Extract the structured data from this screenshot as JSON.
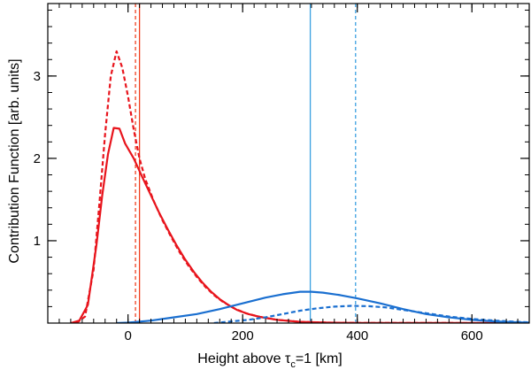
{
  "chart_data": {
    "type": "line",
    "xlabel": {
      "prefix": "Height above ",
      "tau": "τ",
      "sub": "c",
      "suffix": "=1 [km]"
    },
    "ylabel": "Contribution Function [arb. units]",
    "xlim": [
      -140,
      700
    ],
    "ylim": [
      0,
      3.88
    ],
    "xticks": [
      0,
      200,
      400,
      600
    ],
    "xtick_labels": [
      "0",
      "200",
      "400",
      "600"
    ],
    "yticks": [
      1,
      2,
      3
    ],
    "ytick_labels": [
      "1",
      "2",
      "3"
    ],
    "x_minor_step": 20,
    "y_minor_step": 0.2,
    "grid": false,
    "colors": {
      "red": "#e8141c",
      "blue": "#1a6fd0",
      "vline_red": "#f04020",
      "vline_blue": "#3aa0e0"
    },
    "series": [
      {
        "color": "red",
        "dash": false,
        "points": [
          [
            -100,
            0
          ],
          [
            -85,
            0.03
          ],
          [
            -70,
            0.22
          ],
          [
            -55,
            0.95
          ],
          [
            -45,
            1.55
          ],
          [
            -35,
            2.05
          ],
          [
            -25,
            2.37
          ],
          [
            -15,
            2.36
          ],
          [
            -5,
            2.18
          ],
          [
            10,
            2.0
          ],
          [
            25,
            1.77
          ],
          [
            40,
            1.55
          ],
          [
            55,
            1.33
          ],
          [
            70,
            1.13
          ],
          [
            85,
            0.94
          ],
          [
            100,
            0.77
          ],
          [
            115,
            0.62
          ],
          [
            130,
            0.49
          ],
          [
            145,
            0.38
          ],
          [
            160,
            0.29
          ],
          [
            175,
            0.22
          ],
          [
            190,
            0.16
          ],
          [
            210,
            0.11
          ],
          [
            230,
            0.075
          ],
          [
            260,
            0.04
          ],
          [
            300,
            0.015
          ],
          [
            350,
            0.005
          ],
          [
            400,
            0.002
          ],
          [
            700,
            0
          ]
        ]
      },
      {
        "color": "red",
        "dash": true,
        "points": [
          [
            -90,
            0
          ],
          [
            -75,
            0.08
          ],
          [
            -60,
            0.65
          ],
          [
            -50,
            1.45
          ],
          [
            -40,
            2.3
          ],
          [
            -30,
            3.0
          ],
          [
            -20,
            3.3
          ],
          [
            -10,
            3.1
          ],
          [
            0,
            2.75
          ],
          [
            10,
            2.35
          ],
          [
            20,
            2.0
          ],
          [
            30,
            1.75
          ],
          [
            45,
            1.48
          ],
          [
            60,
            1.25
          ],
          [
            75,
            1.05
          ],
          [
            90,
            0.86
          ],
          [
            105,
            0.7
          ],
          [
            120,
            0.56
          ],
          [
            135,
            0.44
          ],
          [
            150,
            0.34
          ],
          [
            165,
            0.26
          ],
          [
            185,
            0.18
          ],
          [
            205,
            0.12
          ],
          [
            230,
            0.075
          ],
          [
            260,
            0.04
          ],
          [
            300,
            0.015
          ],
          [
            350,
            0.005
          ],
          [
            400,
            0.002
          ],
          [
            700,
            0
          ]
        ]
      },
      {
        "color": "blue",
        "dash": false,
        "points": [
          [
            -20,
            0
          ],
          [
            0,
            0.005
          ],
          [
            40,
            0.03
          ],
          [
            80,
            0.07
          ],
          [
            120,
            0.11
          ],
          [
            160,
            0.17
          ],
          [
            200,
            0.24
          ],
          [
            240,
            0.31
          ],
          [
            270,
            0.35
          ],
          [
            300,
            0.38
          ],
          [
            320,
            0.38
          ],
          [
            340,
            0.37
          ],
          [
            370,
            0.34
          ],
          [
            400,
            0.3
          ],
          [
            440,
            0.24
          ],
          [
            480,
            0.17
          ],
          [
            520,
            0.11
          ],
          [
            560,
            0.07
          ],
          [
            600,
            0.04
          ],
          [
            640,
            0.02
          ],
          [
            680,
            0.01
          ],
          [
            700,
            0.005
          ]
        ]
      },
      {
        "color": "blue",
        "dash": true,
        "points": [
          [
            150,
            0
          ],
          [
            180,
            0.02
          ],
          [
            210,
            0.04
          ],
          [
            240,
            0.07
          ],
          [
            270,
            0.11
          ],
          [
            300,
            0.15
          ],
          [
            330,
            0.18
          ],
          [
            360,
            0.2
          ],
          [
            390,
            0.21
          ],
          [
            420,
            0.205
          ],
          [
            450,
            0.19
          ],
          [
            480,
            0.16
          ],
          [
            520,
            0.12
          ],
          [
            560,
            0.08
          ],
          [
            600,
            0.05
          ],
          [
            640,
            0.03
          ],
          [
            680,
            0.015
          ],
          [
            700,
            0.01
          ]
        ]
      }
    ],
    "vlines": [
      {
        "x": 13,
        "color": "vline_red",
        "dash": true
      },
      {
        "x": 20,
        "color": "vline_red",
        "dash": false
      },
      {
        "x": 318,
        "color": "vline_blue",
        "dash": false
      },
      {
        "x": 397,
        "color": "vline_blue",
        "dash": true
      }
    ]
  }
}
